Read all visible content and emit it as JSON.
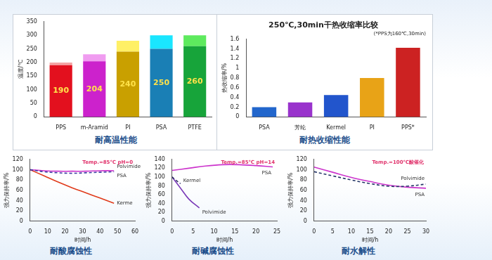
{
  "chart_data": [
    {
      "type": "bar",
      "caption": "耐高温性能",
      "ylabel": "温度/℃",
      "categories": [
        "PPS",
        "m-Aramid",
        "PI",
        "PSA",
        "PTFE"
      ],
      "stacked": true,
      "series": [
        {
          "values": [
            190,
            204,
            240,
            250,
            260
          ],
          "colors": [
            "#e3101e",
            "#cc22cc",
            "#c9a000",
            "#1a7fb5",
            "#17a43a"
          ],
          "data_labels": true
        },
        {
          "values": [
            10,
            26,
            40,
            50,
            40
          ],
          "colors": [
            "#f4a3a3",
            "#f09cf0",
            "#fff066",
            "#1ae6ff",
            "#5eea5e"
          ]
        }
      ],
      "ylim": [
        0,
        350
      ],
      "yticks": [
        0,
        50,
        100,
        150,
        200,
        250,
        300,
        350
      ],
      "grid": false
    },
    {
      "type": "bar",
      "title": "250℃,30min干热收缩率比较",
      "subtitle": "(*PPS为160℃,30min)",
      "caption": "耐热收缩性能",
      "ylabel": "热收缩率/%",
      "categories": [
        "PSA",
        "芳纶",
        "Kermel",
        "PI",
        "PPS*"
      ],
      "values": [
        0.2,
        0.3,
        0.45,
        0.8,
        1.42
      ],
      "colors": [
        "#2266cc",
        "#9933cc",
        "#2255cc",
        "#e8a317",
        "#cc2222"
      ],
      "ylim": [
        0,
        1.6
      ],
      "yticks": [
        0,
        0.2,
        0.4,
        0.6,
        0.8,
        1,
        1.2,
        1.4,
        1.6
      ],
      "grid": false
    },
    {
      "type": "line",
      "caption": "耐酸腐蚀性",
      "annotation": "Temp.=85℃ pH=0",
      "xlabel": "时间/h",
      "ylabel": "强力保持率/%",
      "series": [
        {
          "name": "Polvimide",
          "color": "#3a3aa0",
          "line_style": "dashed",
          "x": [
            0,
            8,
            16,
            24,
            32,
            40,
            48
          ],
          "values": [
            100,
            96,
            94,
            93,
            94,
            95,
            96
          ]
        },
        {
          "name": "PSA",
          "color": "#cc33cc",
          "line_style": "solid",
          "x": [
            0,
            8,
            16,
            24,
            32,
            40,
            48
          ],
          "values": [
            100,
            98,
            97,
            97,
            97,
            98,
            98
          ]
        },
        {
          "name": "Kerme",
          "color": "#e03a1a",
          "line_style": "solid",
          "x": [
            0,
            8,
            16,
            24,
            32,
            40,
            48
          ],
          "values": [
            100,
            88,
            76,
            65,
            55,
            45,
            35
          ]
        }
      ],
      "xlim": [
        0,
        60
      ],
      "xticks": [
        0,
        10,
        20,
        30,
        40,
        50,
        60
      ],
      "ylim": [
        0,
        120
      ],
      "yticks": [
        0,
        20,
        40,
        60,
        80,
        100,
        120
      ],
      "grid": false
    },
    {
      "type": "line",
      "caption": "耐碱腐蚀性",
      "annotation": "Temp.=85℃ pH=14",
      "xlabel": "时间/h",
      "ylabel": "强力保持率/%",
      "series": [
        {
          "name": "PSA",
          "color": "#cc33cc",
          "line_style": "solid",
          "x": [
            0,
            4,
            8,
            12,
            16,
            20,
            24
          ],
          "values": [
            115,
            120,
            125,
            128,
            128,
            126,
            123
          ]
        },
        {
          "name": "Kermel",
          "color": "#333366",
          "line_style": "dashed",
          "x": [
            0,
            1,
            2
          ],
          "values": [
            100,
            92,
            85
          ]
        },
        {
          "name": "Polvimide",
          "color": "#7a3ab8",
          "line_style": "solid",
          "x": [
            0,
            2,
            4,
            6.5
          ],
          "values": [
            100,
            75,
            50,
            30
          ]
        }
      ],
      "xlim": [
        0,
        25
      ],
      "xticks": [
        0,
        5,
        10,
        15,
        20,
        25
      ],
      "ylim": [
        0,
        140
      ],
      "yticks": [
        0,
        20,
        40,
        60,
        80,
        100,
        120,
        140
      ],
      "grid": false
    },
    {
      "type": "line",
      "caption": "耐水解性",
      "annotation": "Temp.=100℃酸催化",
      "xlabel": "时间/h",
      "ylabel": "强力保持率/%",
      "series": [
        {
          "name": "Polvimide",
          "color": "#223366",
          "line_style": "dashed",
          "x": [
            0,
            5,
            10,
            15,
            20,
            25,
            30
          ],
          "values": [
            96,
            88,
            80,
            73,
            68,
            68,
            72
          ]
        },
        {
          "name": "PSA",
          "color": "#cc33cc",
          "line_style": "solid",
          "x": [
            0,
            5,
            10,
            15,
            20,
            25,
            30
          ],
          "values": [
            105,
            95,
            85,
            77,
            70,
            66,
            64
          ]
        }
      ],
      "xlim": [
        0,
        30
      ],
      "xticks": [
        0,
        5,
        10,
        15,
        20,
        25,
        30
      ],
      "ylim": [
        0,
        120
      ],
      "yticks": [
        0,
        20,
        40,
        60,
        80,
        100,
        120
      ],
      "grid": false
    }
  ]
}
